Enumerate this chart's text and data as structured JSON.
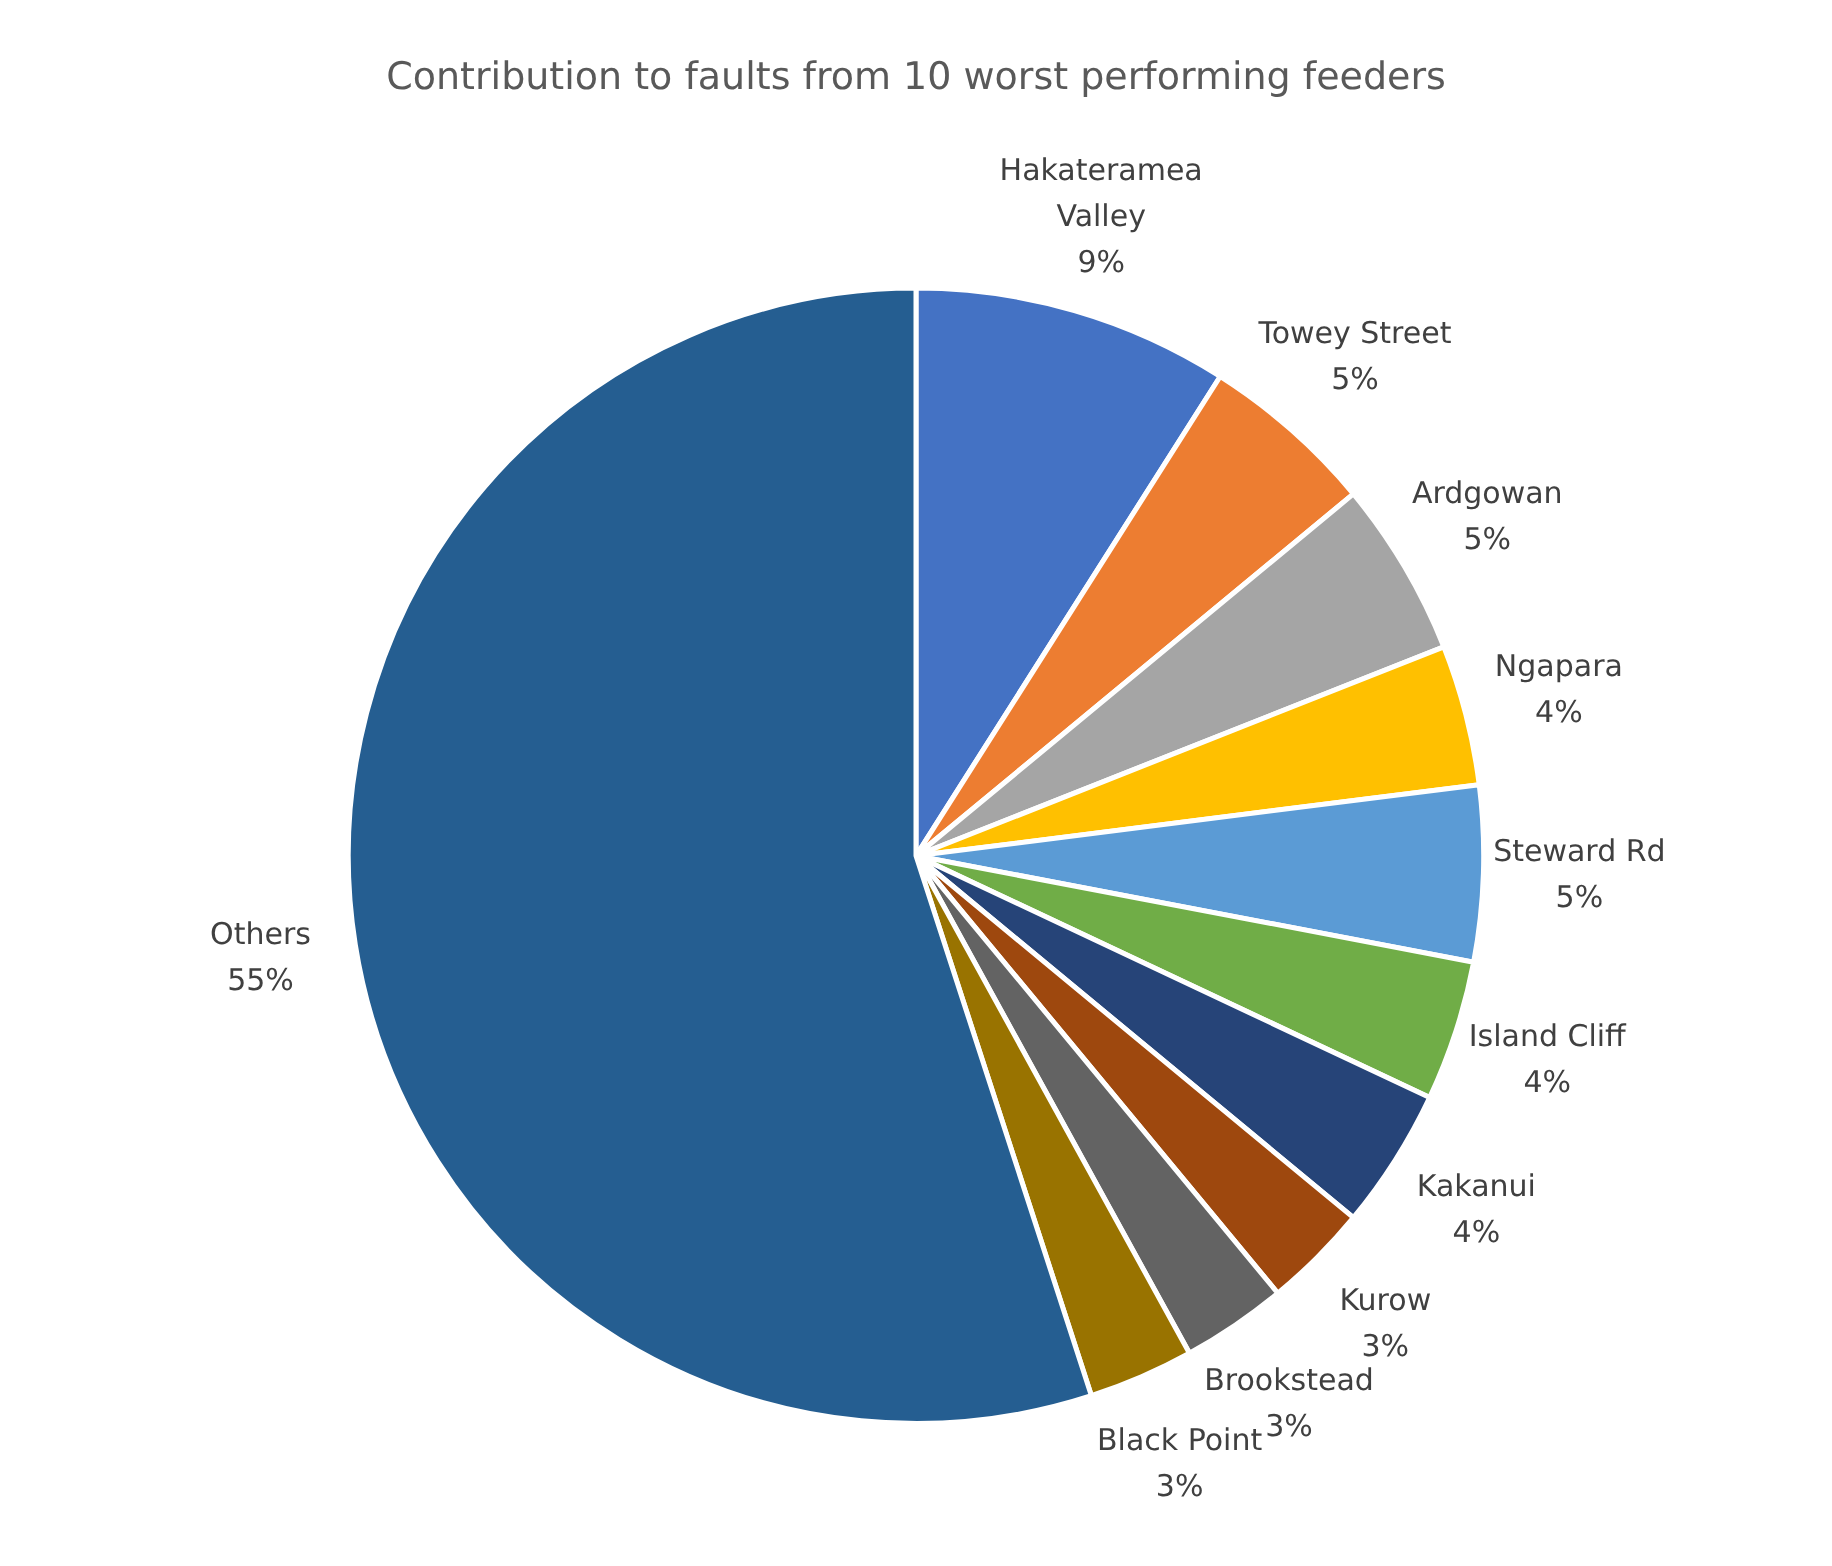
{
  "chart_data": {
    "type": "pie",
    "title": "Contribution to faults from 10 worst performing feeders",
    "categories": [
      "Hakateramea Valley",
      "Towey Street",
      "Ardgowan",
      "Ngapara",
      "Steward Rd",
      "Island Cliff",
      "Kakanui",
      "Kurow",
      "Brookstead",
      "Black Point",
      "Others"
    ],
    "values": [
      9,
      5,
      5,
      4,
      5,
      4,
      4,
      3,
      3,
      3,
      55
    ],
    "value_labels": [
      "9%",
      "5%",
      "5%",
      "4%",
      "5%",
      "4%",
      "4%",
      "3%",
      "3%",
      "3%",
      "55%"
    ],
    "colors": [
      "#4472c4",
      "#ed7d31",
      "#a5a5a5",
      "#ffc000",
      "#5b9bd5",
      "#70ad47",
      "#264478",
      "#9e480e",
      "#636363",
      "#997300",
      "#255e91"
    ],
    "legend": false
  }
}
